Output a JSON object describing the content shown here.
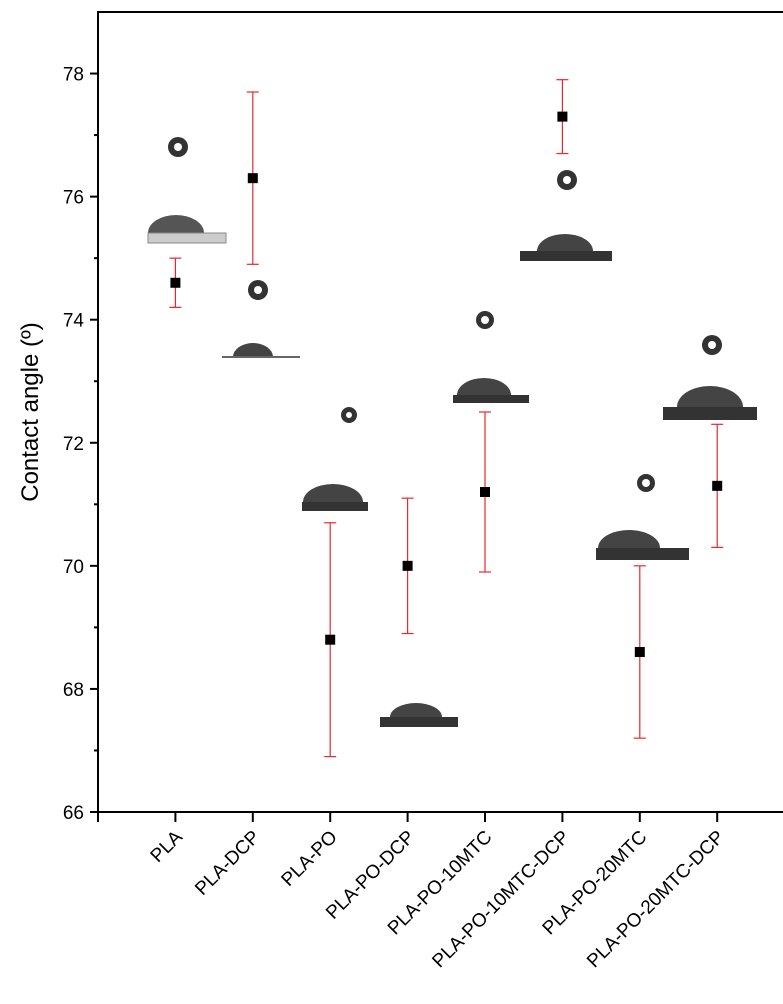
{
  "chart_data": {
    "type": "scatter",
    "y_label": "Contact angle (º)",
    "categories": [
      "PLA",
      "PLA-DCP",
      "PLA-PO",
      "PLA-PO-DCP",
      "PLA-PO-10MTC",
      "PLA-PO-10MTC-DCP",
      "PLA-PO-20MTC",
      "PLA-PO-20MTC-DCP"
    ],
    "values": [
      74.6,
      76.3,
      68.8,
      70.0,
      71.2,
      77.3,
      68.6,
      71.3
    ],
    "errors": [
      0.4,
      1.4,
      1.9,
      1.1,
      1.3,
      0.6,
      1.4,
      1.0
    ],
    "color": "#000000",
    "error_color": "#e8282b",
    "ylim": [
      66,
      79
    ],
    "yticks": [
      66,
      68,
      70,
      72,
      74,
      76,
      78
    ]
  }
}
